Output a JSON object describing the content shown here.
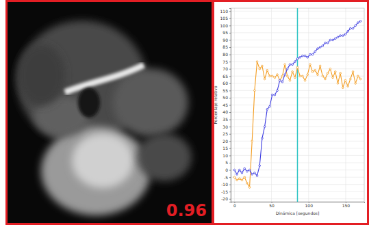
{
  "image_panel": {
    "label": "0.96"
  },
  "chart_data": {
    "type": "line",
    "x_label": "Dinámica [segundos]",
    "y_label": "Porcentaje relativo",
    "x": [
      0,
      3.4,
      6.8,
      10.2,
      13.6,
      17,
      20.4,
      23.8,
      27.2,
      30.6,
      34,
      37.4,
      40.8,
      44.2,
      47.6,
      51,
      54.4,
      57.8,
      61.2,
      64.6,
      68,
      71.4,
      74.8,
      78.2,
      81.6,
      85,
      88.4,
      91.8,
      95.2,
      98.6,
      102,
      105.4,
      108.8,
      112.2,
      115.6,
      119,
      122.4,
      125.8,
      129.2,
      132.6,
      136,
      139.4,
      142.8,
      146.2,
      149.6,
      153,
      156.4,
      159.8,
      163.2,
      166.6,
      170
    ],
    "series": [
      {
        "color": "#f39c1f",
        "marker": "circle",
        "values": [
          -5,
          -7,
          -6,
          -7,
          -5,
          -9,
          -12,
          20,
          55,
          75,
          70,
          72,
          63,
          69,
          65,
          65,
          64,
          66,
          62,
          65,
          73,
          65,
          62,
          68,
          64,
          71,
          65,
          65,
          62,
          66,
          73,
          68,
          69,
          66,
          72,
          65,
          63,
          67,
          70,
          64,
          68,
          60,
          67,
          57,
          62,
          58,
          63,
          68,
          60,
          65,
          63
        ]
      },
      {
        "color": "#3a3ae0",
        "marker": "circle",
        "values": [
          0,
          -3,
          0,
          -2,
          1,
          -1,
          0,
          -3,
          -2,
          -4,
          3,
          22,
          30,
          42,
          44,
          52,
          52,
          55,
          62,
          61,
          66,
          70,
          73,
          73,
          75,
          77,
          78,
          79,
          79,
          78,
          80,
          80,
          82,
          84,
          85,
          86,
          88,
          88,
          90,
          90,
          91,
          92,
          93,
          93,
          94,
          96,
          98,
          98,
          100,
          102,
          103
        ]
      }
    ],
    "cursor_x": 85,
    "xlim": [
      -5,
      175
    ],
    "ylim": [
      -22,
      112
    ],
    "xticks": [
      0,
      50,
      100,
      150
    ],
    "yticks": [
      -20,
      -15,
      -10,
      -5,
      0,
      5,
      10,
      15,
      20,
      25,
      30,
      35,
      40,
      45,
      50,
      55,
      60,
      65,
      70,
      75,
      80,
      85,
      90,
      95,
      100,
      105,
      110
    ],
    "grid": true
  }
}
